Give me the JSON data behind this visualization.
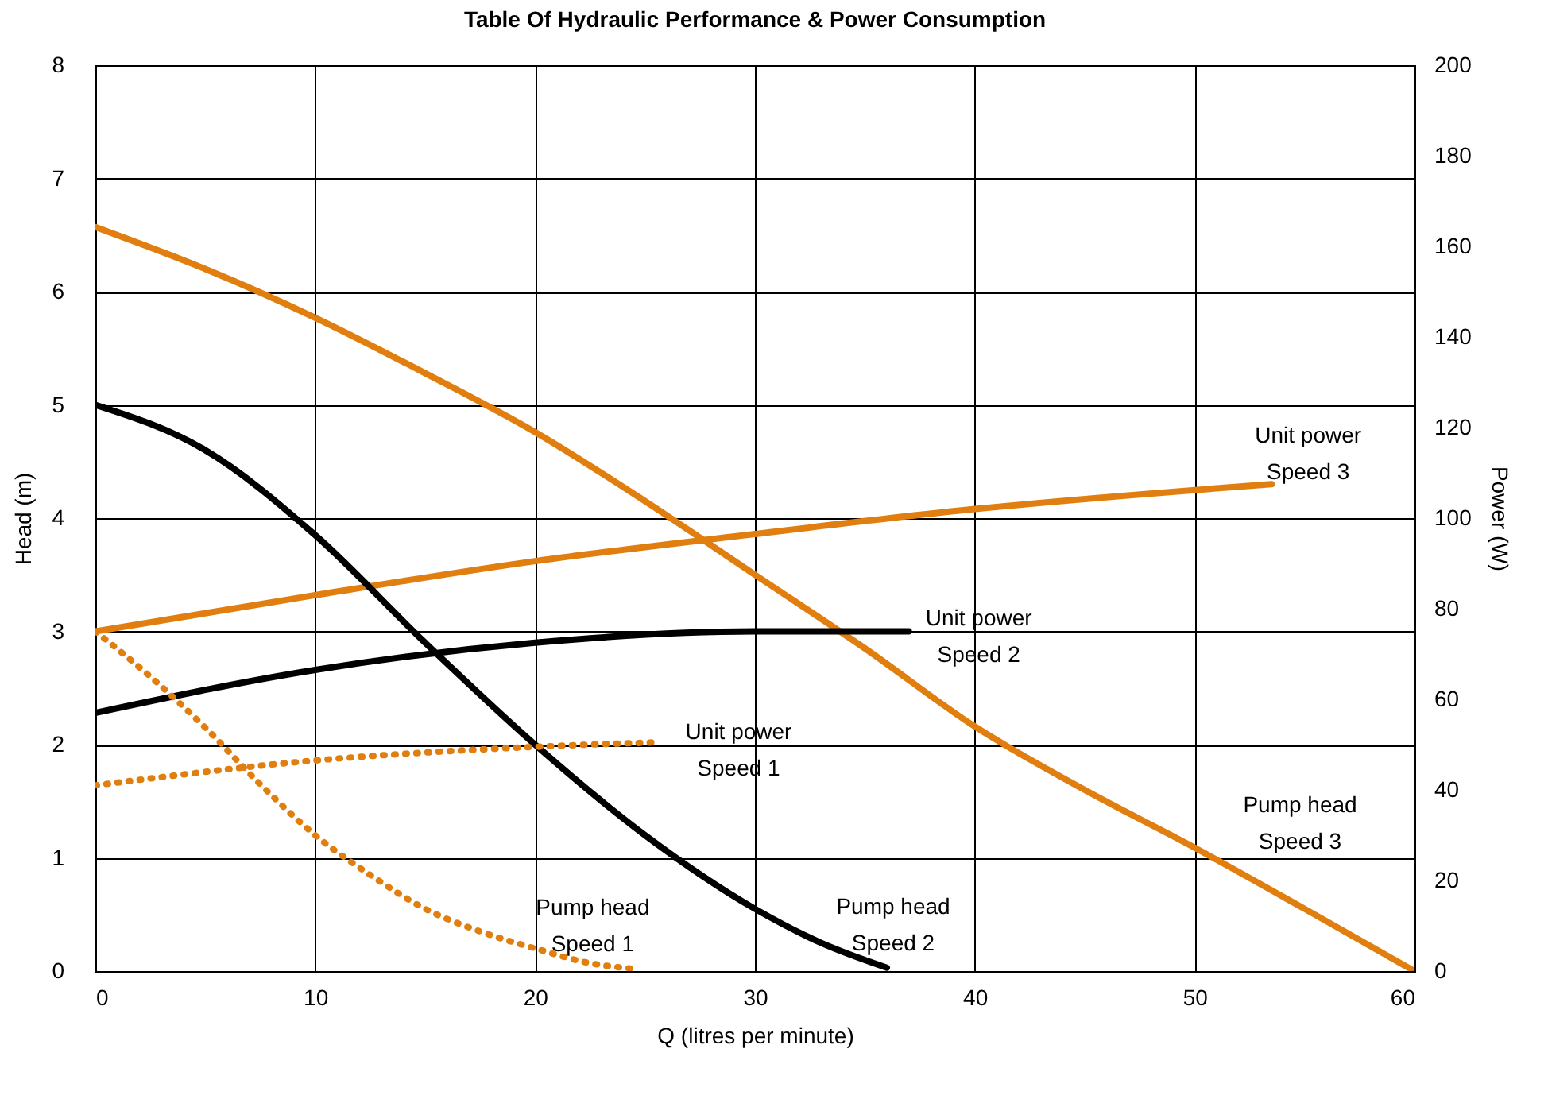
{
  "chart_data": {
    "type": "line",
    "title": "Table Of Hydraulic Performance & Power Consumption",
    "xlabel": "Q (litres per minute)",
    "ylabel": "Head (m)",
    "y2label": "Power (W)",
    "xlim": [
      0,
      60
    ],
    "xticks": [
      0,
      10,
      20,
      30,
      40,
      50,
      60
    ],
    "ylim": [
      0,
      8
    ],
    "yticks": [
      0,
      1,
      2,
      3,
      4,
      5,
      6,
      7,
      8
    ],
    "y2lim": [
      0,
      200
    ],
    "y2ticks": [
      0,
      20,
      40,
      60,
      80,
      100,
      120,
      140,
      160,
      180,
      200
    ],
    "grid": true,
    "marker": "none",
    "series": [
      {
        "name": "Pump head\nSpeed 3",
        "color": "#e07f10",
        "line_style": "solid",
        "x": [
          0,
          5,
          10,
          15,
          20,
          25,
          30,
          35,
          40,
          45,
          50,
          55,
          60
        ],
        "values": [
          6.57,
          6.2,
          5.77,
          5.28,
          4.76,
          4.15,
          3.5,
          2.85,
          2.16,
          1.6,
          1.09,
          0.55,
          0
        ]
      },
      {
        "name": "Unit power\nSpeed 3",
        "color": "#e07f10",
        "line_style": "solid",
        "axis": "y2",
        "x": [
          0,
          10,
          20,
          30,
          40,
          53.5
        ],
        "values": [
          75,
          83,
          90.5,
          96.5,
          102,
          107.5
        ]
      },
      {
        "name": "Pump head\nSpeed 2",
        "color": "#000000",
        "line_style": "solid",
        "x": [
          0,
          5,
          10,
          15,
          20,
          25,
          30,
          33,
          36
        ],
        "values": [
          5,
          4.6,
          3.85,
          2.9,
          2.0,
          1.2,
          0.55,
          0.25,
          0.03
        ]
      },
      {
        "name": "Unit power\nSpeed 2",
        "color": "#000000",
        "line_style": "solid",
        "axis": "y2",
        "x": [
          0,
          10,
          20,
          30,
          37
        ],
        "values": [
          57,
          66.5,
          72.5,
          75,
          75
        ]
      },
      {
        "name": "Pump head\nSpeed 1",
        "color": "#e07f10",
        "line_style": "dotted",
        "x": [
          0,
          2.5,
          5,
          7.5,
          10,
          12.5,
          15,
          17.5,
          20,
          22.5,
          24.5
        ],
        "values": [
          3.0,
          2.6,
          2.15,
          1.65,
          1.2,
          0.85,
          0.55,
          0.35,
          0.2,
          0.07,
          0.02
        ]
      },
      {
        "name": "Unit power\nSpeed 1",
        "color": "#e07f10",
        "line_style": "dotted",
        "axis": "y2",
        "x": [
          0,
          10,
          20,
          25.5
        ],
        "values": [
          41,
          46.5,
          49.5,
          50.5
        ]
      }
    ]
  }
}
